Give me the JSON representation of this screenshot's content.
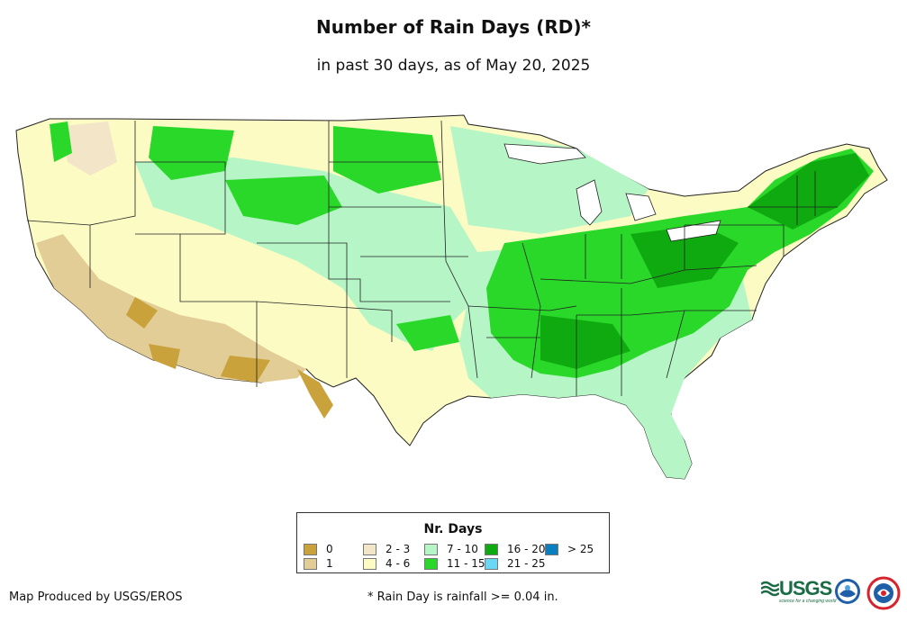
{
  "title": "Number of Rain Days (RD)*",
  "subtitle": "in past 30 days, as of May 20, 2025",
  "legend": {
    "title": "Nr. Days",
    "items": [
      {
        "label": "0",
        "color": "#c9a23c"
      },
      {
        "label": "1",
        "color": "#e2cd96"
      },
      {
        "label": "2 - 3",
        "color": "#f3e6c8"
      },
      {
        "label": "4 - 6",
        "color": "#fbfbc3"
      },
      {
        "label": "7 - 10",
        "color": "#b6f5c6"
      },
      {
        "label": "11 - 15",
        "color": "#29d829"
      },
      {
        "label": "16 - 20",
        "color": "#0faa0f"
      },
      {
        "label": "21 - 25",
        "color": "#6ad7f4"
      },
      {
        "label": "> 25",
        "color": "#0a7fc0"
      }
    ]
  },
  "footer": {
    "credit": "Map Produced by USGS/EROS",
    "note": "* Rain Day is rainfall >= 0.04 in."
  },
  "logos": {
    "usgs": "USGS",
    "usgs_tagline": "science for a changing world"
  }
}
